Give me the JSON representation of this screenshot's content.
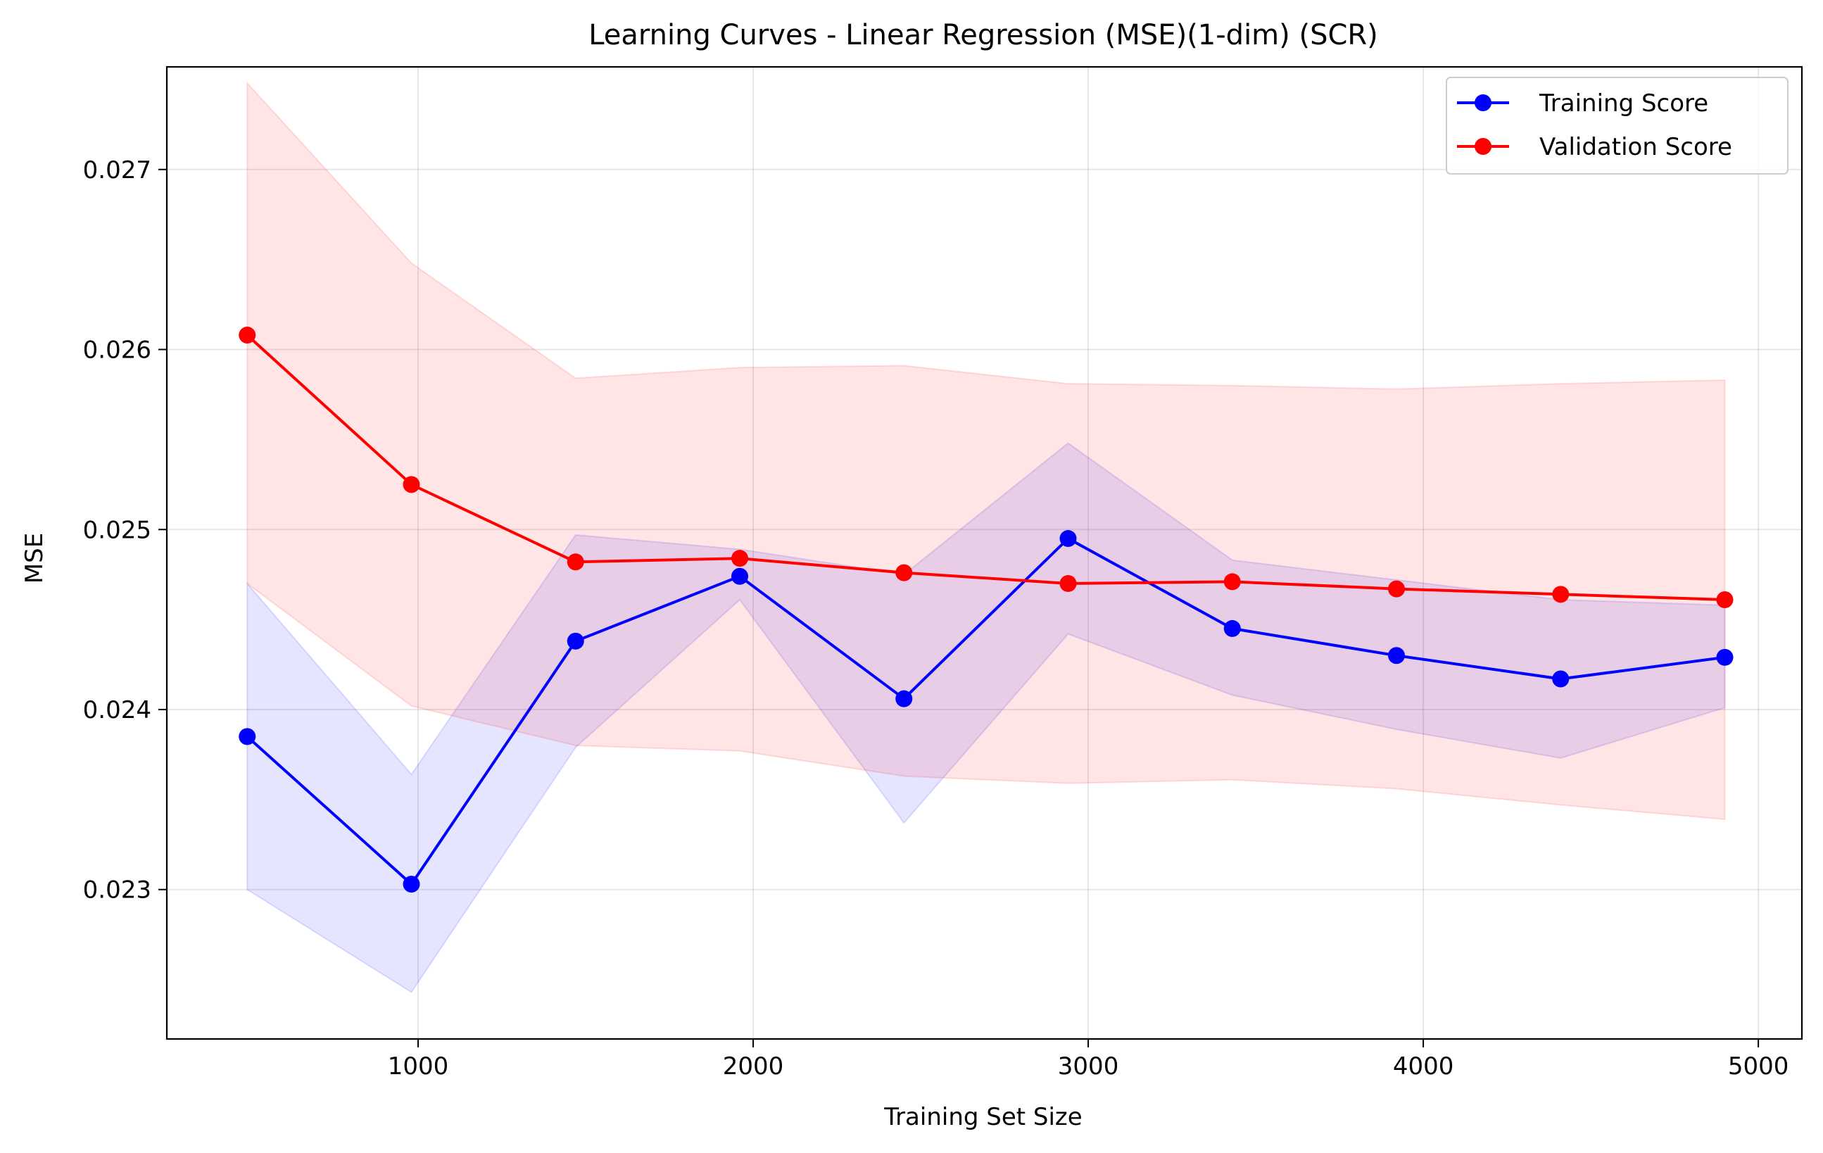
{
  "chart_data": {
    "type": "line",
    "title": "Learning Curves - Linear Regression (MSE)(1-dim) (SCR)",
    "xlabel": "Training Set Size",
    "ylabel": "MSE",
    "xlim": [
      250,
      5130
    ],
    "ylim": [
      0.02217,
      0.02757
    ],
    "xticks": [
      1000,
      2000,
      3000,
      4000,
      5000
    ],
    "xtick_labels": [
      "1000",
      "2000",
      "3000",
      "4000",
      "5000"
    ],
    "yticks": [
      0.023,
      0.024,
      0.025,
      0.026,
      0.027
    ],
    "ytick_labels": [
      "0.023",
      "0.024",
      "0.025",
      "0.026",
      "0.027"
    ],
    "grid": true,
    "legend_position": "top-right",
    "x": [
      490,
      980,
      1470,
      1960,
      2450,
      2940,
      3430,
      3920,
      4410,
      4900
    ],
    "series": [
      {
        "name": "Training Score",
        "color": "#0000ff",
        "band_color": "#0000ff",
        "values": [
          0.02385,
          0.02303,
          0.02438,
          0.02474,
          0.02406,
          0.02495,
          0.02445,
          0.0243,
          0.02417,
          0.02429
        ],
        "lower": [
          0.023,
          0.02243,
          0.02379,
          0.02461,
          0.02337,
          0.02442,
          0.02408,
          0.02389,
          0.02373,
          0.02401
        ],
        "upper": [
          0.0247,
          0.02364,
          0.02497,
          0.02489,
          0.02475,
          0.02548,
          0.02483,
          0.02472,
          0.02461,
          0.02458
        ]
      },
      {
        "name": "Validation Score",
        "color": "#ff0000",
        "band_color": "#ff0000",
        "values": [
          0.02608,
          0.02525,
          0.02482,
          0.02484,
          0.02476,
          0.0247,
          0.02471,
          0.02467,
          0.02464,
          0.02461
        ],
        "lower": [
          0.0247,
          0.02402,
          0.0238,
          0.02377,
          0.02363,
          0.02359,
          0.02361,
          0.02356,
          0.02347,
          0.02339
        ],
        "upper": [
          0.02748,
          0.02648,
          0.02584,
          0.0259,
          0.02591,
          0.02581,
          0.0258,
          0.02578,
          0.02581,
          0.02583
        ]
      }
    ]
  }
}
